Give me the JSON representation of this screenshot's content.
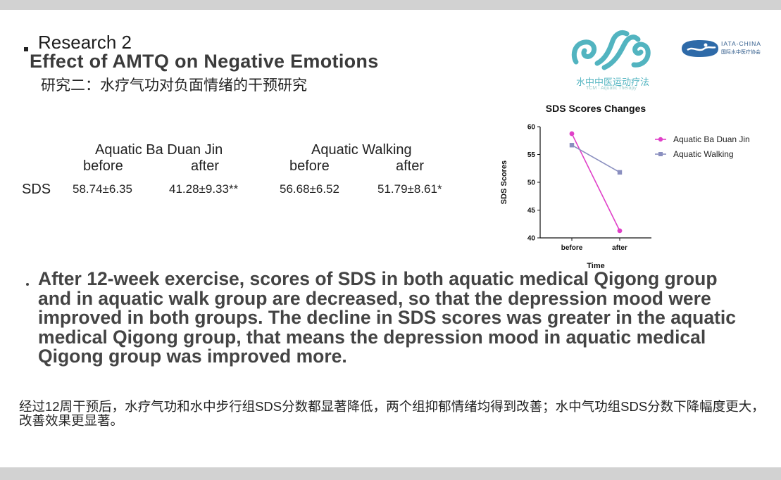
{
  "slide": {
    "heading": "Research 2",
    "title": "Effect of AMTQ on Negative Emotions",
    "subtitle_cn": "研究二：水疗气功对负面情绪的干预研究"
  },
  "logos": {
    "logo1_text": "水中中医运动疗法",
    "logo1_sub": "TCM · Aquatic Therapy",
    "logo2_text": "IATA-CHINA",
    "logo2_sub": "国际水中医疗协会"
  },
  "table": {
    "group1": "Aquatic Ba Duan Jin",
    "group2": "Aquatic Walking",
    "col_before": "before",
    "col_after": "after",
    "row_label": "SDS",
    "g1_before": "58.74±6.35",
    "g1_after": "41.28±9.33**",
    "g2_before": "56.68±6.52",
    "g2_after": "51.79±8.61*"
  },
  "chart_data": {
    "type": "line",
    "title": "SDS Scores Changes",
    "xlabel": "Time",
    "ylabel": "SDS Scores",
    "categories": [
      "before",
      "after"
    ],
    "ylim": [
      40,
      60
    ],
    "yticks": [
      40,
      45,
      50,
      55,
      60
    ],
    "legend_position": "right",
    "series": [
      {
        "name": "Aquatic Ba Duan Jin",
        "values": [
          58.74,
          41.28
        ],
        "color": "#e040c8",
        "marker": "circle"
      },
      {
        "name": "Aquatic Walking",
        "values": [
          56.68,
          51.79
        ],
        "color": "#8a8fbf",
        "marker": "square"
      }
    ]
  },
  "body": {
    "paragraph_en": "After 12-week exercise, scores of SDS in both aquatic medical Qigong group and in aquatic walk group are decreased, so that the depression mood were improved in both groups. The decline in SDS scores was greater in the aquatic medical Qigong group, that means the depression mood in aquatic medical Qigong group was improved more.",
    "paragraph_cn": "经过12周干预后，水疗气功和水中步行组SDS分数都显著降低，两个组抑郁情绪均得到改善；水中气功组SDS分数下降幅度更大，改善效果更显著。"
  },
  "colors": {
    "logo_teal": "#52b4c0",
    "logo_blue": "#2e6aa8",
    "frame_gray": "#d2d2d2"
  }
}
